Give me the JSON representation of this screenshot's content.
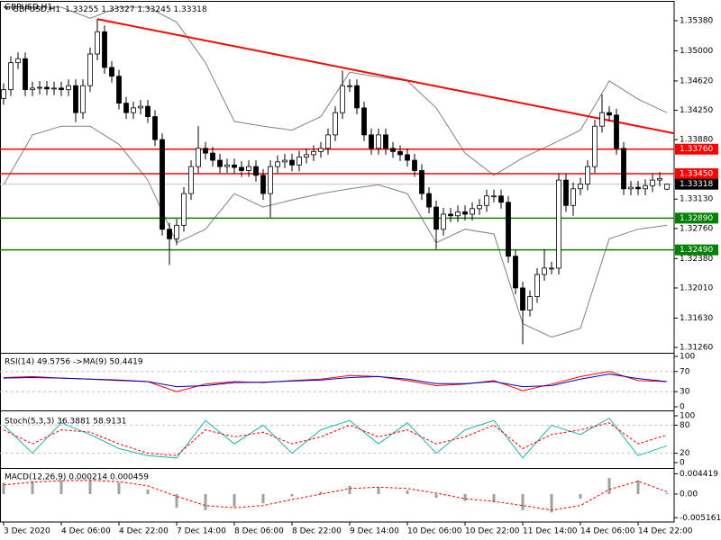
{
  "chart_data": [
    {
      "type": "candlestick",
      "title": "GBPUSD,H1",
      "ohlc_text": "1.33255 1.33327 1.33245 1.33318",
      "x": [
        0,
        1,
        2,
        3,
        4,
        5,
        6,
        7,
        8,
        9,
        10,
        11,
        12,
        13,
        14,
        15,
        16,
        17,
        18,
        19,
        20,
        21,
        22,
        23,
        24,
        25,
        26,
        27,
        28,
        29,
        30,
        31,
        32,
        33,
        34,
        35,
        36,
        37,
        38,
        39,
        40,
        41,
        42,
        43,
        44,
        45,
        46,
        47,
        48,
        49,
        50,
        51,
        52,
        53,
        54,
        55,
        56,
        57,
        58,
        59,
        60,
        61,
        62,
        63,
        64,
        65,
        66,
        67,
        68,
        69,
        70,
        71,
        72,
        73,
        74,
        75,
        76,
        77,
        78,
        79,
        80,
        81,
        82,
        83,
        84,
        85,
        86,
        87,
        88,
        89,
        90,
        91,
        92
      ],
      "open": [
        1.344,
        1.3451,
        1.3485,
        1.349,
        1.3451,
        1.3453,
        1.3454,
        1.3452,
        1.3453,
        1.3451,
        1.3456,
        1.3422,
        1.3456,
        1.3496,
        1.3524,
        1.3479,
        1.3468,
        1.3434,
        1.3422,
        1.3428,
        1.343,
        1.3417,
        1.3388,
        1.3275,
        1.3263,
        1.328,
        1.332,
        1.3354,
        1.3377,
        1.3371,
        1.3362,
        1.3354,
        1.3356,
        1.3353,
        1.3349,
        1.3354,
        1.3343,
        1.332,
        1.3354,
        1.336,
        1.3362,
        1.3356,
        1.3366,
        1.3369,
        1.3373,
        1.3377,
        1.3394,
        1.3422,
        1.3456,
        1.3456,
        1.3428,
        1.3394,
        1.3377,
        1.3394,
        1.3377,
        1.3373,
        1.3369,
        1.3362,
        1.3349,
        1.332,
        1.3303,
        1.3275,
        1.3294,
        1.3292,
        1.3297,
        1.3294,
        1.3301,
        1.3305,
        1.3317,
        1.3317,
        1.3309,
        1.3241,
        1.3201,
        1.3173,
        1.319,
        1.3218,
        1.3226,
        1.3226,
        1.3337,
        1.3305,
        1.3326,
        1.3332,
        1.3354,
        1.3405,
        1.3422,
        1.3419,
        1.3377,
        1.3326,
        1.3328,
        1.3326,
        1.333,
        1.3337,
        1.33255
      ],
      "high": [
        1.3459,
        1.3493,
        1.3498,
        1.3498,
        1.3461,
        1.3462,
        1.3462,
        1.3461,
        1.3461,
        1.3464,
        1.3464,
        1.3464,
        1.3504,
        1.354,
        1.3532,
        1.3487,
        1.3476,
        1.3442,
        1.3436,
        1.3438,
        1.3438,
        1.3425,
        1.3396,
        1.3283,
        1.3288,
        1.3328,
        1.3362,
        1.3405,
        1.3385,
        1.3379,
        1.337,
        1.3364,
        1.3364,
        1.3361,
        1.3362,
        1.3362,
        1.3351,
        1.3362,
        1.3368,
        1.337,
        1.337,
        1.3374,
        1.3377,
        1.3381,
        1.3385,
        1.3402,
        1.343,
        1.3475,
        1.3464,
        1.3464,
        1.3436,
        1.3402,
        1.3402,
        1.3402,
        1.3385,
        1.3381,
        1.3377,
        1.337,
        1.3357,
        1.3328,
        1.3311,
        1.3302,
        1.3302,
        1.3305,
        1.3305,
        1.3309,
        1.3313,
        1.3325,
        1.3325,
        1.3325,
        1.3317,
        1.3249,
        1.3209,
        1.3198,
        1.3226,
        1.325,
        1.3234,
        1.3345,
        1.3345,
        1.3334,
        1.334,
        1.3362,
        1.3413,
        1.3445,
        1.343,
        1.3427,
        1.3385,
        1.3336,
        1.3336,
        1.3338,
        1.3345,
        1.3347,
        1.33327
      ],
      "low": [
        1.3432,
        1.3443,
        1.3477,
        1.3443,
        1.3443,
        1.3445,
        1.3444,
        1.3444,
        1.3443,
        1.3443,
        1.341,
        1.3414,
        1.3448,
        1.3488,
        1.3471,
        1.346,
        1.3426,
        1.3414,
        1.3414,
        1.342,
        1.3409,
        1.338,
        1.3267,
        1.323,
        1.3255,
        1.3272,
        1.3312,
        1.3346,
        1.3363,
        1.3354,
        1.3346,
        1.3346,
        1.3345,
        1.3341,
        1.3341,
        1.3335,
        1.3312,
        1.329,
        1.3346,
        1.3352,
        1.3348,
        1.3348,
        1.3358,
        1.3361,
        1.3365,
        1.3369,
        1.3386,
        1.3414,
        1.3448,
        1.342,
        1.3386,
        1.3369,
        1.3369,
        1.3369,
        1.3365,
        1.3361,
        1.3354,
        1.3341,
        1.3312,
        1.3295,
        1.325,
        1.3267,
        1.3284,
        1.3284,
        1.3286,
        1.3286,
        1.3293,
        1.3297,
        1.3309,
        1.3301,
        1.3233,
        1.3193,
        1.313,
        1.3165,
        1.3182,
        1.321,
        1.3218,
        1.3218,
        1.3297,
        1.3292,
        1.3318,
        1.3324,
        1.3346,
        1.3397,
        1.3411,
        1.3369,
        1.3318,
        1.3318,
        1.3318,
        1.3318,
        1.3322,
        1.3329,
        1.33245
      ],
      "close": [
        1.3451,
        1.3485,
        1.349,
        1.3451,
        1.3453,
        1.3454,
        1.3452,
        1.3453,
        1.3451,
        1.3456,
        1.3422,
        1.3456,
        1.3496,
        1.3524,
        1.3479,
        1.3468,
        1.3434,
        1.3422,
        1.3428,
        1.343,
        1.3417,
        1.3388,
        1.3275,
        1.3263,
        1.328,
        1.332,
        1.3354,
        1.3377,
        1.3371,
        1.3362,
        1.3354,
        1.3356,
        1.3353,
        1.3349,
        1.3354,
        1.3343,
        1.332,
        1.3354,
        1.336,
        1.3362,
        1.3356,
        1.3366,
        1.3369,
        1.3373,
        1.3377,
        1.3394,
        1.3422,
        1.3456,
        1.3456,
        1.3428,
        1.3394,
        1.3377,
        1.3394,
        1.3377,
        1.3373,
        1.3369,
        1.3362,
        1.3349,
        1.332,
        1.3303,
        1.3275,
        1.3294,
        1.3292,
        1.3297,
        1.3294,
        1.3301,
        1.3305,
        1.3317,
        1.3317,
        1.3309,
        1.3241,
        1.3201,
        1.3173,
        1.319,
        1.3218,
        1.3226,
        1.3226,
        1.3337,
        1.3305,
        1.3326,
        1.3332,
        1.3354,
        1.3405,
        1.3422,
        1.3419,
        1.3377,
        1.3326,
        1.3328,
        1.3326,
        1.333,
        1.3337,
        1.3339,
        1.33318
      ],
      "up_color": "#ffffff",
      "down_color": "#000000",
      "outline_color": "#000000",
      "xlim": [
        -0.5,
        93
      ],
      "xticks": [
        {
          "value": 0,
          "label": "3 Dec 2020"
        },
        {
          "value": 8,
          "label": "4 Dec 06:00"
        },
        {
          "value": 16,
          "label": "4 Dec 22:00"
        },
        {
          "value": 24,
          "label": "7 Dec 14:00"
        },
        {
          "value": 32,
          "label": "8 Dec 06:00"
        },
        {
          "value": 40,
          "label": "8 Dec 22:00"
        },
        {
          "value": 48,
          "label": "9 Dec 14:00"
        },
        {
          "value": 56,
          "label": "10 Dec 06:00"
        },
        {
          "value": 64,
          "label": "10 Dec 22:00"
        },
        {
          "value": 72,
          "label": "11 Dec 14:00"
        },
        {
          "value": 80,
          "label": "14 Dec 06:00"
        },
        {
          "value": 88,
          "label": "14 Dec 22:00"
        }
      ],
      "ylim": [
        1.31215,
        1.35618
      ],
      "yticks": [
        {
          "value": 1.3538,
          "label": "1.35380"
        },
        {
          "value": 1.35,
          "label": "1.35000"
        },
        {
          "value": 1.3462,
          "label": "1.34620"
        },
        {
          "value": 1.3425,
          "label": "1.34250"
        },
        {
          "value": 1.3388,
          "label": "1.33880"
        },
        {
          "value": 1.3313,
          "label": "1.33130"
        },
        {
          "value": 1.3276,
          "label": "1.32760"
        },
        {
          "value": 1.3238,
          "label": "1.32380"
        },
        {
          "value": 1.3201,
          "label": "1.32010"
        },
        {
          "value": 1.3163,
          "label": "1.31630"
        },
        {
          "value": 1.3126,
          "label": "1.31260"
        }
      ],
      "bands": {
        "color": "#808080",
        "x": [
          0,
          4,
          8,
          12,
          16,
          20,
          24,
          28,
          32,
          36,
          40,
          44,
          48,
          52,
          56,
          60,
          64,
          68,
          72,
          76,
          80,
          84,
          88,
          92
        ],
        "upper": [
          1.3555,
          1.3555,
          1.3555,
          1.3541,
          1.3555,
          1.3555,
          1.3536,
          1.3485,
          1.3411,
          1.3405,
          1.34,
          1.3417,
          1.3473,
          1.3467,
          1.3462,
          1.3428,
          1.3371,
          1.3343,
          1.3365,
          1.3382,
          1.34,
          1.3462,
          1.3439,
          1.3422
        ],
        "lower": [
          1.3331,
          1.3394,
          1.3405,
          1.3405,
          1.3382,
          1.3337,
          1.3258,
          1.3275,
          1.332,
          1.3303,
          1.3312,
          1.332,
          1.3326,
          1.3331,
          1.332,
          1.3258,
          1.3275,
          1.3269,
          1.3156,
          1.3139,
          1.315,
          1.3263,
          1.3275,
          1.328
        ]
      },
      "trendline": {
        "color": "#ff0000",
        "x": [
          13,
          93
        ],
        "values": [
          1.354,
          1.3396
        ]
      },
      "levels": [
        {
          "value": 1.3376,
          "label": "1.33760",
          "color": "#ff0000"
        },
        {
          "value": 1.3345,
          "label": "1.33450",
          "color": "#ff0000"
        },
        {
          "value": 1.3289,
          "label": "1.32890",
          "color": "#008000"
        },
        {
          "value": 1.3249,
          "label": "1.32490",
          "color": "#008000"
        }
      ],
      "price_line": {
        "value": 1.33318,
        "label": "1.33318",
        "color": "#c0c0c0"
      }
    },
    {
      "type": "line",
      "title": "RSI(14) 49.5756 ->MA(9) 50.4419",
      "grid": "inner",
      "x": [
        0,
        4,
        8,
        12,
        16,
        20,
        24,
        28,
        32,
        36,
        40,
        44,
        48,
        52,
        56,
        60,
        64,
        68,
        72,
        76,
        80,
        84,
        88,
        92
      ],
      "series": [
        {
          "color": "#ff0000",
          "dashed": false,
          "values": [
            58,
            60,
            57,
            55,
            52,
            50,
            30,
            45,
            50,
            48,
            52,
            55,
            62,
            60,
            52,
            42,
            45,
            52,
            32,
            45,
            60,
            70,
            52,
            50
          ]
        },
        {
          "color": "#0000c0",
          "dashed": false,
          "values": [
            57,
            58,
            57,
            55,
            53,
            50,
            40,
            42,
            48,
            49,
            51,
            53,
            58,
            60,
            55,
            46,
            46,
            50,
            40,
            42,
            55,
            65,
            56,
            50
          ]
        }
      ],
      "ylim": [
        0,
        100
      ],
      "yticks": [
        100,
        70,
        30,
        0
      ]
    },
    {
      "type": "line",
      "title": "Stoch(5,3,3) 36.3881 58.9131",
      "grid": "inner",
      "x": [
        0,
        4,
        8,
        12,
        16,
        20,
        24,
        28,
        32,
        36,
        40,
        44,
        48,
        52,
        56,
        60,
        64,
        68,
        72,
        76,
        80,
        84,
        88,
        92
      ],
      "series": [
        {
          "color": "#20b2aa",
          "dashed": false,
          "values": [
            80,
            20,
            85,
            60,
            30,
            15,
            10,
            90,
            40,
            80,
            20,
            70,
            90,
            40,
            85,
            20,
            70,
            90,
            10,
            80,
            60,
            95,
            15,
            36
          ]
        },
        {
          "color": "#ff0000",
          "dashed": true,
          "values": [
            70,
            40,
            70,
            65,
            40,
            20,
            15,
            70,
            55,
            65,
            40,
            55,
            80,
            55,
            70,
            40,
            55,
            80,
            30,
            60,
            70,
            85,
            40,
            59
          ]
        }
      ],
      "ylim": [
        0,
        100
      ],
      "yticks": [
        100,
        80,
        20,
        0
      ]
    },
    {
      "type": "macd",
      "title": "MACD(12,26,9) 0.000214 0.000459",
      "grid": "none",
      "x": [
        0,
        4,
        8,
        12,
        16,
        20,
        24,
        28,
        32,
        36,
        40,
        44,
        48,
        52,
        56,
        60,
        64,
        68,
        72,
        76,
        80,
        84,
        88,
        92
      ],
      "series": [
        {
          "style": "bar",
          "color": "#a0a0a0",
          "values": [
            0.0025,
            0.0028,
            0.003,
            0.003,
            0.0025,
            0.001,
            -0.003,
            -0.0035,
            -0.0028,
            -0.002,
            -0.0005,
            0.0005,
            0.0018,
            0.0015,
            0.0008,
            -0.0008,
            -0.0015,
            -0.0018,
            -0.0035,
            -0.004,
            -0.001,
            0.0035,
            0.003,
            0.0002
          ]
        },
        {
          "style": "line",
          "color": "#ff0000",
          "dashed": true,
          "values": [
            0.002,
            0.0026,
            0.0029,
            0.003,
            0.0027,
            0.0018,
            -0.0005,
            -0.0025,
            -0.003,
            -0.0025,
            -0.0012,
            0,
            0.0012,
            0.0015,
            0.0012,
            0.0002,
            -0.001,
            -0.0016,
            -0.0025,
            -0.0035,
            -0.0025,
            0.001,
            0.0028,
            0.0005
          ]
        }
      ],
      "ylim": [
        -0.0057,
        0.0049
      ],
      "yticks": [
        0.004419,
        {
          "value": 0,
          "label": "0.00"
        },
        -0.005161
      ]
    }
  ]
}
